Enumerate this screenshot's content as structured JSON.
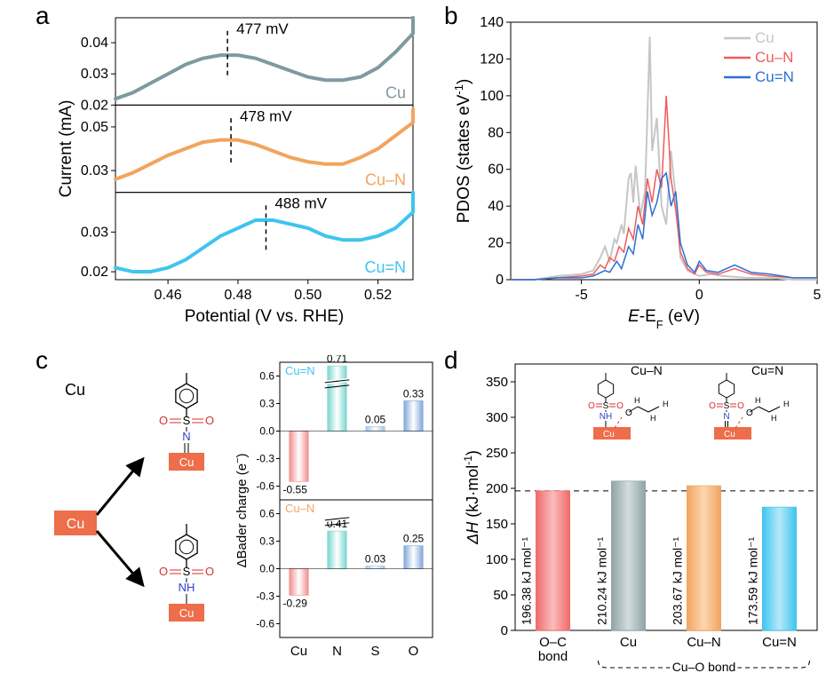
{
  "labels": {
    "a": "a",
    "b": "b",
    "c": "c",
    "d": "d"
  },
  "panelA": {
    "xlabel": "Potential (V vs. RHE)",
    "ylabel": "Current (mA)",
    "xlim": [
      0.445,
      0.53
    ],
    "xticks": [
      0.46,
      0.48,
      0.5,
      0.52
    ],
    "series": [
      {
        "name": "Cu",
        "color": "#7e9aa0",
        "peak_label": "477 mV",
        "peak_x": 0.477,
        "ylim": [
          0.02,
          0.048
        ],
        "yticks": [
          0.02,
          0.03,
          0.04
        ],
        "y": [
          0.022,
          0.024,
          0.027,
          0.03,
          0.033,
          0.035,
          0.036,
          0.036,
          0.035,
          0.033,
          0.031,
          0.029,
          0.028,
          0.028,
          0.029,
          0.032,
          0.037,
          0.043,
          0.048
        ]
      },
      {
        "name": "Cu–N",
        "color": "#f2a45e",
        "peak_label": "478 mV",
        "peak_x": 0.478,
        "ylim": [
          0.02,
          0.06
        ],
        "yticks": [
          0.03,
          0.05
        ],
        "y": [
          0.026,
          0.029,
          0.033,
          0.037,
          0.04,
          0.043,
          0.044,
          0.044,
          0.042,
          0.039,
          0.036,
          0.034,
          0.033,
          0.033,
          0.036,
          0.04,
          0.046,
          0.052,
          0.058
        ]
      },
      {
        "name": "Cu=N",
        "color": "#3fc4ee",
        "peak_label": "488 mV",
        "peak_x": 0.488,
        "ylim": [
          0.018,
          0.04
        ],
        "yticks": [
          0.02,
          0.03
        ],
        "y": [
          0.021,
          0.02,
          0.02,
          0.021,
          0.023,
          0.026,
          0.029,
          0.031,
          0.033,
          0.033,
          0.032,
          0.031,
          0.029,
          0.028,
          0.028,
          0.029,
          0.031,
          0.035,
          0.04
        ]
      }
    ],
    "xsamples": [
      0.445,
      0.45,
      0.455,
      0.46,
      0.465,
      0.47,
      0.475,
      0.48,
      0.485,
      0.49,
      0.495,
      0.5,
      0.505,
      0.51,
      0.515,
      0.52,
      0.525,
      0.53,
      0.53
    ]
  },
  "panelB": {
    "xlabel_pre": "E",
    "xlabel_mid": "-E",
    "xlabel_sub": "F",
    "xlabel_unit": " (eV)",
    "ylabel_pre": "PDOS (states eV",
    "ylabel_sup": "-1",
    "ylabel_post": ")",
    "xlim": [
      -8,
      5
    ],
    "xticks": [
      -5,
      0,
      5
    ],
    "ylim": [
      0,
      140
    ],
    "yticks": [
      0,
      20,
      40,
      60,
      80,
      100,
      120,
      140
    ],
    "grid_color": "#000000",
    "bg": "#ffffff",
    "legend": [
      {
        "name": "Cu",
        "color": "#c6c6c6"
      },
      {
        "name": "Cu–N",
        "color": "#ef5b5b"
      },
      {
        "name": "Cu=N",
        "color": "#2d6fd6"
      }
    ],
    "curves": [
      {
        "color": "#c6c6c6",
        "w": 2,
        "pts": [
          [
            -8,
            0
          ],
          [
            -7,
            0
          ],
          [
            -6,
            2
          ],
          [
            -5,
            3
          ],
          [
            -4.5,
            5
          ],
          [
            -4.2,
            12
          ],
          [
            -4.0,
            18
          ],
          [
            -3.8,
            10
          ],
          [
            -3.6,
            22
          ],
          [
            -3.5,
            20
          ],
          [
            -3.3,
            30
          ],
          [
            -3.2,
            25
          ],
          [
            -3.0,
            55
          ],
          [
            -2.9,
            58
          ],
          [
            -2.8,
            42
          ],
          [
            -2.7,
            62
          ],
          [
            -2.5,
            35
          ],
          [
            -2.3,
            48
          ],
          [
            -2.1,
            132
          ],
          [
            -2.0,
            70
          ],
          [
            -1.8,
            88
          ],
          [
            -1.6,
            40
          ],
          [
            -1.4,
            30
          ],
          [
            -1.2,
            70
          ],
          [
            -1.0,
            45
          ],
          [
            -0.8,
            12
          ],
          [
            -0.5,
            5
          ],
          [
            0,
            2
          ],
          [
            0.5,
            3
          ],
          [
            1,
            2
          ],
          [
            2,
            1
          ],
          [
            3,
            1
          ],
          [
            4,
            0
          ],
          [
            5,
            0
          ]
        ]
      },
      {
        "color": "#ef5b5b",
        "w": 1.5,
        "pts": [
          [
            -8,
            0
          ],
          [
            -7,
            0
          ],
          [
            -6,
            1
          ],
          [
            -5,
            2
          ],
          [
            -4.5,
            3
          ],
          [
            -4.2,
            8
          ],
          [
            -4.0,
            6
          ],
          [
            -3.8,
            12
          ],
          [
            -3.6,
            10
          ],
          [
            -3.4,
            18
          ],
          [
            -3.2,
            15
          ],
          [
            -3.0,
            28
          ],
          [
            -2.8,
            22
          ],
          [
            -2.6,
            40
          ],
          [
            -2.4,
            30
          ],
          [
            -2.2,
            55
          ],
          [
            -2.0,
            42
          ],
          [
            -1.8,
            60
          ],
          [
            -1.6,
            50
          ],
          [
            -1.4,
            100
          ],
          [
            -1.2,
            55
          ],
          [
            -1.0,
            38
          ],
          [
            -0.8,
            15
          ],
          [
            -0.5,
            6
          ],
          [
            -0.2,
            3
          ],
          [
            0,
            8
          ],
          [
            0.3,
            4
          ],
          [
            0.8,
            3
          ],
          [
            1.5,
            6
          ],
          [
            2.2,
            3
          ],
          [
            3,
            2
          ],
          [
            4,
            1
          ],
          [
            5,
            1
          ]
        ]
      },
      {
        "color": "#2d6fd6",
        "w": 1.5,
        "pts": [
          [
            -8,
            0
          ],
          [
            -7,
            0
          ],
          [
            -6,
            1
          ],
          [
            -5,
            1
          ],
          [
            -4.5,
            2
          ],
          [
            -4.0,
            5
          ],
          [
            -3.8,
            4
          ],
          [
            -3.5,
            10
          ],
          [
            -3.3,
            6
          ],
          [
            -3.0,
            18
          ],
          [
            -2.8,
            14
          ],
          [
            -2.6,
            30
          ],
          [
            -2.4,
            22
          ],
          [
            -2.2,
            48
          ],
          [
            -2.0,
            35
          ],
          [
            -1.8,
            42
          ],
          [
            -1.6,
            55
          ],
          [
            -1.4,
            58
          ],
          [
            -1.2,
            40
          ],
          [
            -1.0,
            48
          ],
          [
            -0.8,
            20
          ],
          [
            -0.5,
            8
          ],
          [
            -0.2,
            4
          ],
          [
            0,
            10
          ],
          [
            0.3,
            5
          ],
          [
            0.8,
            4
          ],
          [
            1.5,
            8
          ],
          [
            2.2,
            4
          ],
          [
            3,
            3
          ],
          [
            4,
            1
          ],
          [
            5,
            1
          ]
        ]
      }
    ]
  },
  "panelC": {
    "cu_label": "Cu",
    "cu_box_color": "#ee6d4a",
    "arrow_color": "#000000",
    "molecule": {
      "ring_color": "#000",
      "so_red": "#d8322f",
      "n_blue": "#2b3fce",
      "nh_label": "NH",
      "n_label": "N"
    },
    "chart": {
      "ylabel_pre": "ΔBader charge (e",
      "ylabel_sup": "−",
      "ylabel_post": ")",
      "categories": [
        "Cu",
        "N",
        "S",
        "O"
      ],
      "bar_w": 0.5,
      "ylim": [
        -0.75,
        0.75
      ],
      "yticks_top": [
        -0.6,
        -0.3,
        0.0,
        0.3,
        0.6
      ],
      "colors": {
        "Cu": "#f28e8e",
        "N": "#79d6d0",
        "S": "#9fc6e7",
        "O": "#7fa6d9"
      },
      "series": [
        {
          "name": "Cu=N",
          "title_color": "#3fc4ee",
          "vals": {
            "Cu": -0.55,
            "N": 0.71,
            "S": 0.05,
            "O": 0.33
          }
        },
        {
          "name": "Cu–N",
          "title_color": "#f2a45e",
          "vals": {
            "Cu": -0.29,
            "N": 0.41,
            "S": 0.03,
            "O": 0.25
          }
        }
      ]
    }
  },
  "panelD": {
    "ylabel_pre": "Δ",
    "ylabel_h": "H",
    "ylabel_unit": " (kJ·mol",
    "ylabel_sup": "-1",
    "ylabel_post": ")",
    "ylim": [
      0,
      375
    ],
    "yticks": [
      0,
      50,
      100,
      150,
      200,
      250,
      300,
      350
    ],
    "dash_y": 196.38,
    "bracket_label": "Cu–O bond",
    "inset": {
      "cuN": "Cu–N",
      "cuNN": "Cu=N"
    },
    "bars": [
      {
        "label": "O–C\nbond",
        "base": "#f06a6a",
        "light": "#fbbcbc",
        "value": 196.38,
        "text": "196.38 kJ mol⁻¹"
      },
      {
        "label": "Cu",
        "base": "#8fa3a7",
        "light": "#d4dde0",
        "value": 210.24,
        "text": "210.24 kJ mol⁻¹"
      },
      {
        "label": "Cu–N",
        "base": "#f2a45e",
        "light": "#fbd7b2",
        "value": 203.67,
        "text": "203.67 kJ mol⁻¹"
      },
      {
        "label": "Cu=N",
        "base": "#3fc4ee",
        "light": "#b6e9fa",
        "value": 173.59,
        "text": "173.59 kJ mol⁻¹"
      }
    ]
  }
}
